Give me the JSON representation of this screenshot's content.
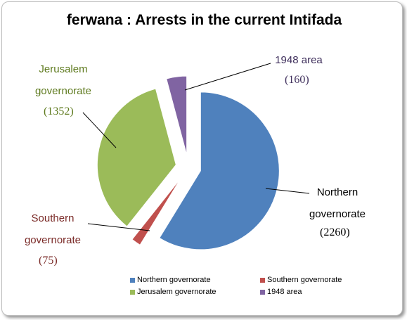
{
  "chart_data": {
    "type": "pie",
    "title": "ferwana : Arrests in the current Intifada",
    "categories": [
      "Northern governorate",
      "Southern governorate",
      "Jerusalem governorate",
      "1948 area"
    ],
    "values": [
      2260,
      75,
      1352,
      160
    ],
    "value_labels": [
      "(2260)",
      "(75)",
      "(1352)",
      "(160)"
    ],
    "colors": [
      "#4f81bd",
      "#c0504d",
      "#9bbb59",
      "#8064a2"
    ],
    "legend": "bottom"
  }
}
